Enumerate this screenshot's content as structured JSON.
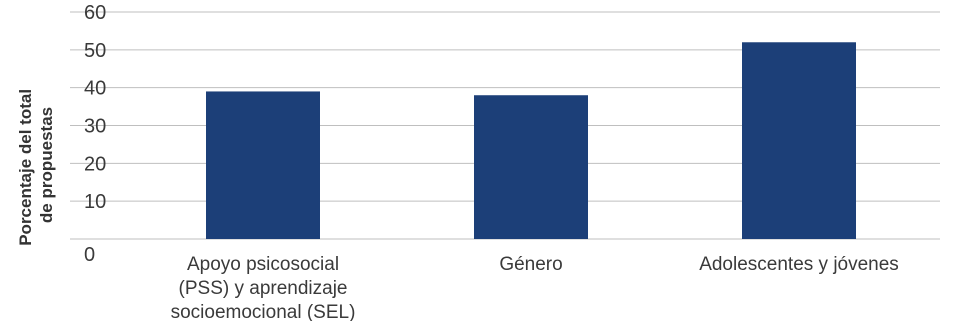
{
  "chart_data": {
    "type": "bar",
    "categories": [
      [
        "Apoyo psicosocial",
        "(PSS) y aprendizaje",
        "socioemocional (SEL)"
      ],
      [
        "Género"
      ],
      [
        "Adolescentes y jóvenes"
      ]
    ],
    "values": [
      39,
      38,
      52
    ],
    "ylabel_lines": [
      "Porcentaje del total",
      "de propuestas"
    ],
    "ylim": [
      0,
      60
    ],
    "yticks": [
      0,
      10,
      20,
      30,
      40,
      50,
      60
    ],
    "grid": true,
    "legend": "none",
    "bar_color": "#1c3f78",
    "grid_color": "#bfbfbf"
  }
}
